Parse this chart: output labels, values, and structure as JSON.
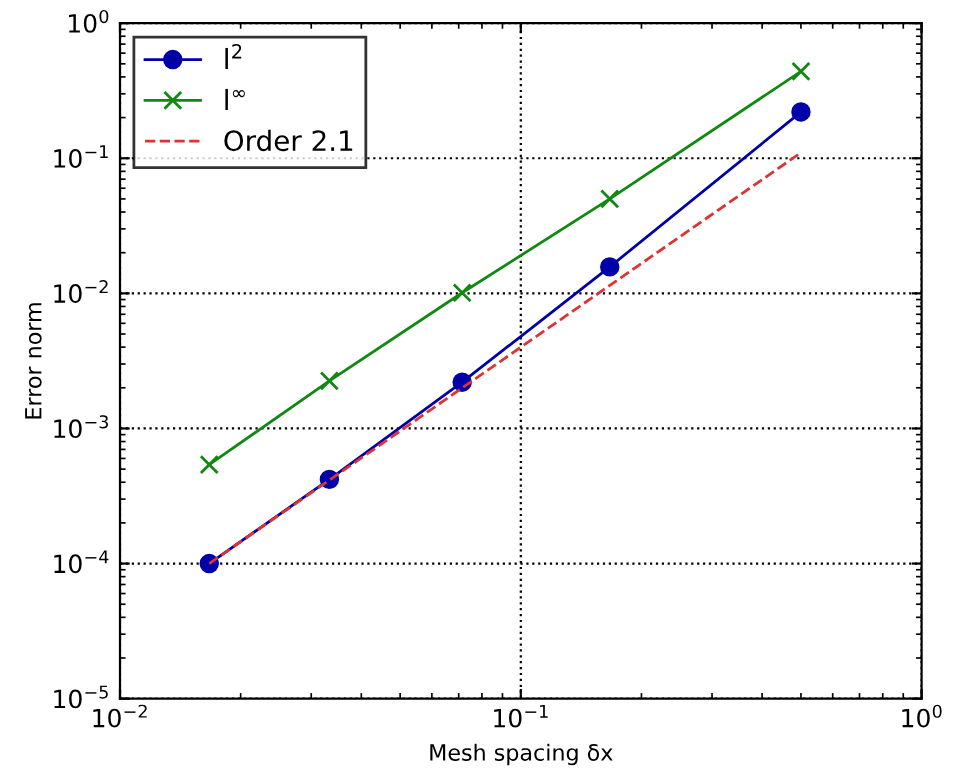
{
  "chart_data": {
    "type": "line",
    "xlabel": "Mesh spacing δx",
    "ylabel": "Error norm",
    "log": "xy",
    "x": [
      0.0167,
      0.0333,
      0.0714,
      0.1667,
      0.5
    ],
    "series": [
      {
        "name": "l$^{2}$",
        "color": "#0000aa",
        "values": [
          0.0001,
          0.00042,
          0.0022,
          0.0157,
          0.22
        ],
        "marker": "circle",
        "line_style": "solid"
      },
      {
        "name": "l$^{∞}$",
        "color": "#118811",
        "values": [
          0.00054,
          0.00225,
          0.0101,
          0.05,
          0.44
        ],
        "marker": "cross",
        "line_style": "solid"
      },
      {
        "name": "Order 2.1",
        "color": "#dd3333",
        "x": [
          0.0167,
          0.5
        ],
        "values": [
          0.0001,
          0.11
        ],
        "marker": "none",
        "line_style": "dashed"
      }
    ],
    "xlim": [
      0.01,
      1
    ],
    "ylim": [
      1e-05,
      1
    ],
    "xticks": [
      {
        "value": 0.01,
        "label": "10$^{−2}$"
      },
      {
        "value": 0.1,
        "label": "10$^{−1}$"
      },
      {
        "value": 1,
        "label": "10$^{0}$"
      }
    ],
    "yticks": [
      {
        "value": 1e-05,
        "label": "10$^{−5}$"
      },
      {
        "value": 0.0001,
        "label": "10$^{−4}$"
      },
      {
        "value": 0.001,
        "label": "10$^{−3}$"
      },
      {
        "value": 0.01,
        "label": "10$^{−2}$"
      },
      {
        "value": 0.1,
        "label": "10$^{−1}$"
      },
      {
        "value": 1,
        "label": "10$^{0}$"
      }
    ],
    "grid": true,
    "legend": "top left"
  }
}
